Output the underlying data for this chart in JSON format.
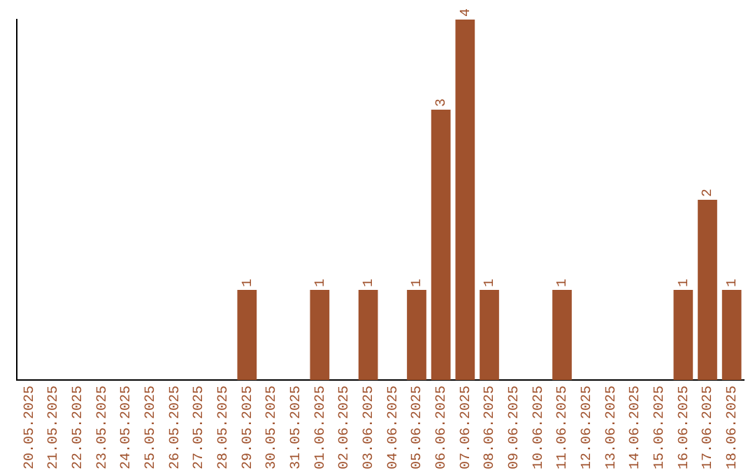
{
  "chart_data": {
    "type": "bar",
    "categories": [
      "20.05.2025",
      "21.05.2025",
      "22.05.2025",
      "23.05.2025",
      "24.05.2025",
      "25.05.2025",
      "26.05.2025",
      "27.05.2025",
      "28.05.2025",
      "29.05.2025",
      "30.05.2025",
      "31.05.2025",
      "01.06.2025",
      "02.06.2025",
      "03.06.2025",
      "04.06.2025",
      "05.06.2025",
      "06.06.2025",
      "07.06.2025",
      "08.06.2025",
      "09.06.2025",
      "10.06.2025",
      "11.06.2025",
      "12.06.2025",
      "13.06.2025",
      "14.06.2025",
      "15.06.2025",
      "16.06.2025",
      "17.06.2025",
      "18.06.2025"
    ],
    "values": [
      0,
      0,
      0,
      0,
      0,
      0,
      0,
      0,
      0,
      1,
      0,
      0,
      1,
      0,
      1,
      0,
      1,
      3,
      4,
      1,
      0,
      0,
      1,
      0,
      0,
      0,
      0,
      1,
      2,
      1
    ],
    "value_labels": [
      null,
      null,
      null,
      null,
      null,
      null,
      null,
      null,
      null,
      "1",
      null,
      null,
      "1",
      null,
      "1",
      null,
      "1",
      "3",
      "4",
      "1",
      null,
      null,
      "1",
      null,
      null,
      null,
      null,
      "1",
      "2",
      "1"
    ],
    "color": "#a0522d",
    "grid": false,
    "legend": false,
    "tick_labels": "x"
  }
}
